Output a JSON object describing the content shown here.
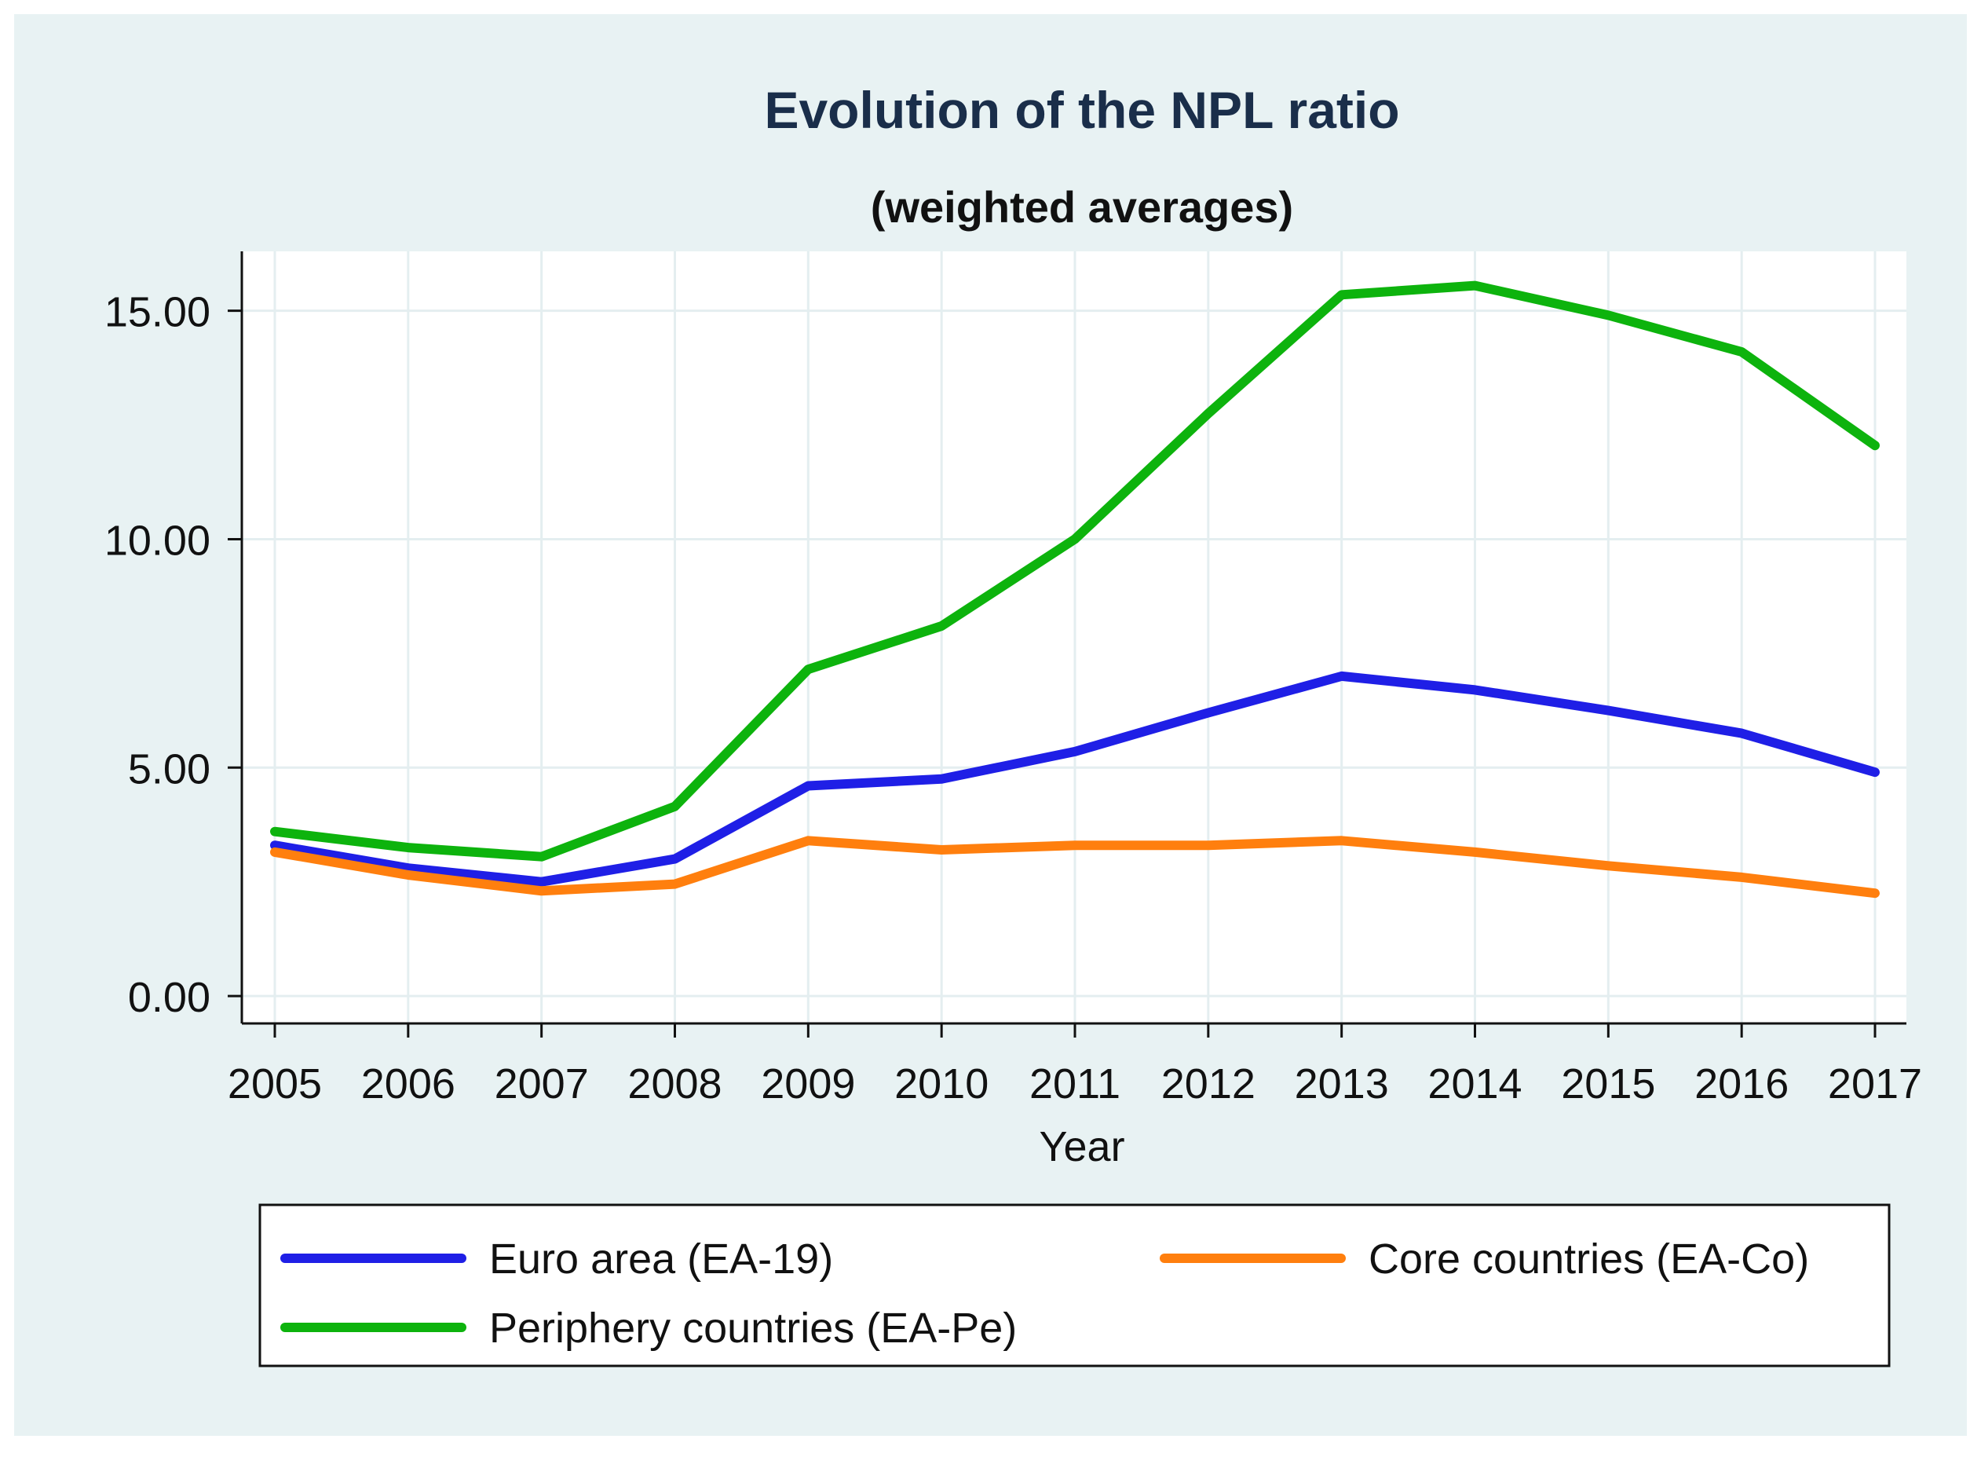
{
  "chart_data": {
    "type": "line",
    "title": "Evolution of the NPL ratio",
    "subtitle": "(weighted averages)",
    "xlabel": "Year",
    "ylabel": "",
    "x": [
      "2005",
      "2006",
      "2007",
      "2008",
      "2009",
      "2010",
      "2011",
      "2012",
      "2013",
      "2014",
      "2015",
      "2016",
      "2017"
    ],
    "ylim": [
      -0.6,
      16.3
    ],
    "yticks": [
      "0.00",
      "5.00",
      "10.00",
      "15.00"
    ],
    "grid": true,
    "legend_position": "bottom",
    "series": [
      {
        "name": "Euro area (EA-19)",
        "color": "#1f1fe6",
        "values": [
          3.3,
          2.8,
          2.5,
          3.0,
          4.6,
          4.75,
          5.35,
          6.2,
          7.0,
          6.7,
          6.25,
          5.75,
          4.9
        ]
      },
      {
        "name": "Core countries (EA-Co)",
        "color": "#ff7f0e",
        "values": [
          3.15,
          2.65,
          2.3,
          2.45,
          3.4,
          3.2,
          3.3,
          3.3,
          3.4,
          3.15,
          2.85,
          2.6,
          2.25
        ]
      },
      {
        "name": "Periphery countries (EA-Pe)",
        "color": "#0db30d",
        "values": [
          3.6,
          3.25,
          3.05,
          4.15,
          7.15,
          8.1,
          10.0,
          12.75,
          15.35,
          15.55,
          14.9,
          14.1,
          12.05
        ]
      }
    ]
  }
}
